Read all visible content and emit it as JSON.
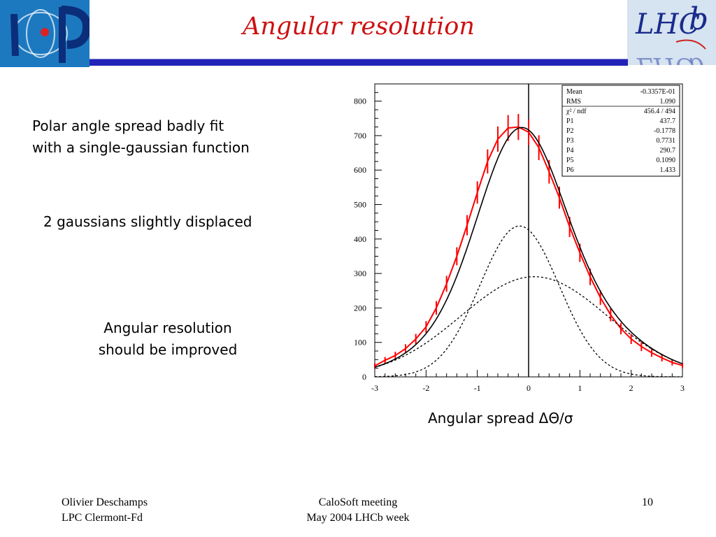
{
  "slide": {
    "title": "Angular resolution",
    "notes": [
      [
        "Polar angle spread badly fit",
        "with a single-gaussian function"
      ],
      [
        "2 gaussians slightly displaced"
      ],
      [
        "Angular resolution",
        "should be improved"
      ]
    ],
    "x_caption": "Angular spread ΔΘ/σ",
    "footer": {
      "left": [
        "Olivier Deschamps",
        "LPC Clermont-Fd"
      ],
      "center": [
        "CaloSoft meeting",
        "May 2004 LHCb week"
      ],
      "right": "10"
    },
    "logos": {
      "left_text": "LPC",
      "right_text": "LHCb"
    }
  },
  "colors": {
    "title": "#cc1111",
    "header_rule": "#2323b8",
    "histogram": "#ff0000",
    "fit": "#000000",
    "logo_left_bg": "#1c79c0"
  },
  "chart_data": {
    "type": "line",
    "title": "",
    "xlabel": "",
    "ylabel": "",
    "xlim": [
      -3,
      3
    ],
    "ylim": [
      0,
      850
    ],
    "x_ticks": [
      -3,
      -2,
      -1,
      0,
      1,
      2,
      3
    ],
    "y_ticks": [
      0,
      100,
      200,
      300,
      400,
      500,
      600,
      700,
      800
    ],
    "vertical_line_x": 0,
    "grid": false,
    "stats_box": {
      "placement": "top-right",
      "rows": [
        {
          "label": "Mean",
          "value": "-0.3357E-01"
        },
        {
          "label": "RMS",
          "value": "1.090"
        },
        {
          "label": "χ² / ndf",
          "value": "456.4   /   494"
        },
        {
          "label": "P1",
          "value": "437.7"
        },
        {
          "label": "P2",
          "value": "-0.1778"
        },
        {
          "label": "P3",
          "value": "0.7731"
        },
        {
          "label": "P4",
          "value": "290.7"
        },
        {
          "label": "P5",
          "value": "0.1090"
        },
        {
          "label": "P6",
          "value": "1.433"
        }
      ]
    },
    "series": [
      {
        "style": "histogram-error-bars",
        "x": [
          -3.0,
          -2.8,
          -2.6,
          -2.4,
          -2.2,
          -2.0,
          -1.8,
          -1.6,
          -1.4,
          -1.2,
          -1.0,
          -0.8,
          -0.6,
          -0.4,
          -0.2,
          0.0,
          0.2,
          0.4,
          0.6,
          0.8,
          1.0,
          1.2,
          1.4,
          1.6,
          1.8,
          2.0,
          2.2,
          2.4,
          2.6,
          2.8,
          3.0
        ],
        "y": [
          32,
          48,
          62,
          82,
          110,
          145,
          200,
          270,
          350,
          440,
          535,
          625,
          690,
          722,
          725,
          710,
          665,
          595,
          520,
          435,
          360,
          290,
          230,
          180,
          140,
          110,
          88,
          70,
          55,
          42,
          33
        ]
      },
      {
        "style": "fit-total",
        "gaussians": [
          {
            "amplitude": 437.7,
            "mean": -0.1778,
            "sigma": 0.7731
          },
          {
            "amplitude": 290.7,
            "mean": 0.109,
            "sigma": 1.433
          }
        ]
      },
      {
        "style": "fit-component-1",
        "amplitude": 437.7,
        "mean": -0.1778,
        "sigma": 0.7731
      },
      {
        "style": "fit-component-2",
        "amplitude": 290.7,
        "mean": 0.109,
        "sigma": 1.433
      }
    ]
  }
}
